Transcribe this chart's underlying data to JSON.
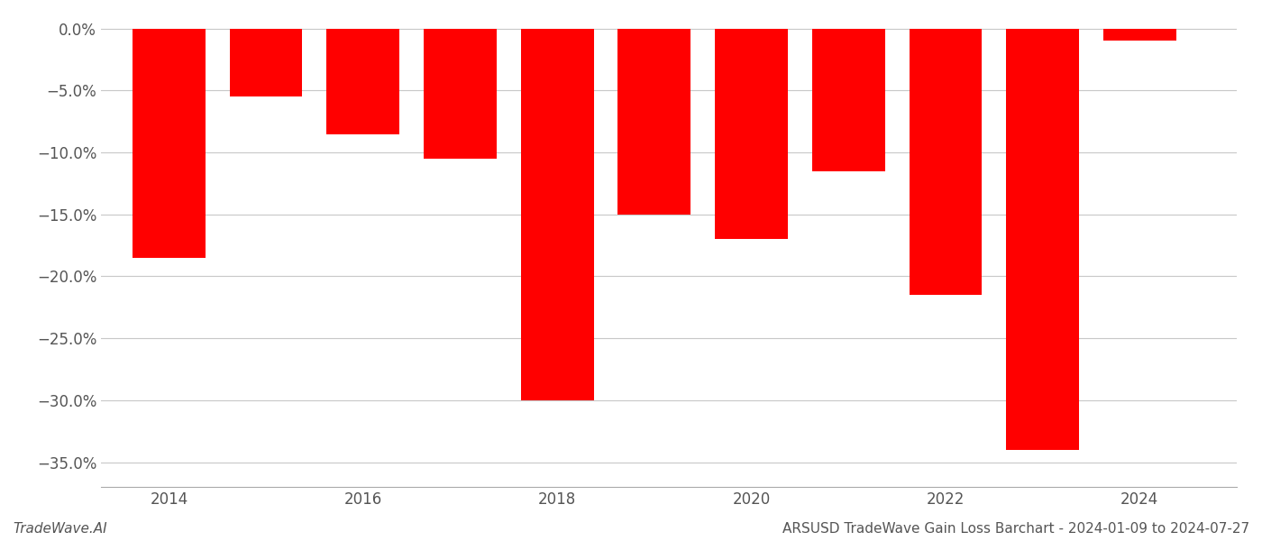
{
  "years": [
    2014,
    2015,
    2016,
    2017,
    2018,
    2019,
    2020,
    2021,
    2022,
    2023,
    2024
  ],
  "values": [
    -18.5,
    -5.5,
    -8.5,
    -10.5,
    -30.0,
    -15.0,
    -17.0,
    -11.5,
    -21.5,
    -34.0,
    -1.0
  ],
  "bar_color": "#ff0000",
  "bar_width": 0.75,
  "ylim": [
    -37.0,
    1.0
  ],
  "yticks": [
    0.0,
    -5.0,
    -10.0,
    -15.0,
    -20.0,
    -25.0,
    -30.0,
    -35.0
  ],
  "ytick_labels": [
    "0.0%",
    "−5.0%",
    "−10.0%",
    "−15.0%",
    "−20.0%",
    "−25.0%",
    "−30.0%",
    "−35.0%"
  ],
  "xticks": [
    2014,
    2016,
    2018,
    2020,
    2022,
    2024
  ],
  "xlabel": "",
  "ylabel": "",
  "footer_left": "TradeWave.AI",
  "footer_right": "ARSUSD TradeWave Gain Loss Barchart - 2024-01-09 to 2024-07-27",
  "background_color": "#ffffff",
  "grid_color": "#c8c8c8",
  "spine_color": "#aaaaaa",
  "tick_color": "#666666",
  "font_color": "#555555",
  "tick_fontsize": 12,
  "footer_fontsize": 11
}
